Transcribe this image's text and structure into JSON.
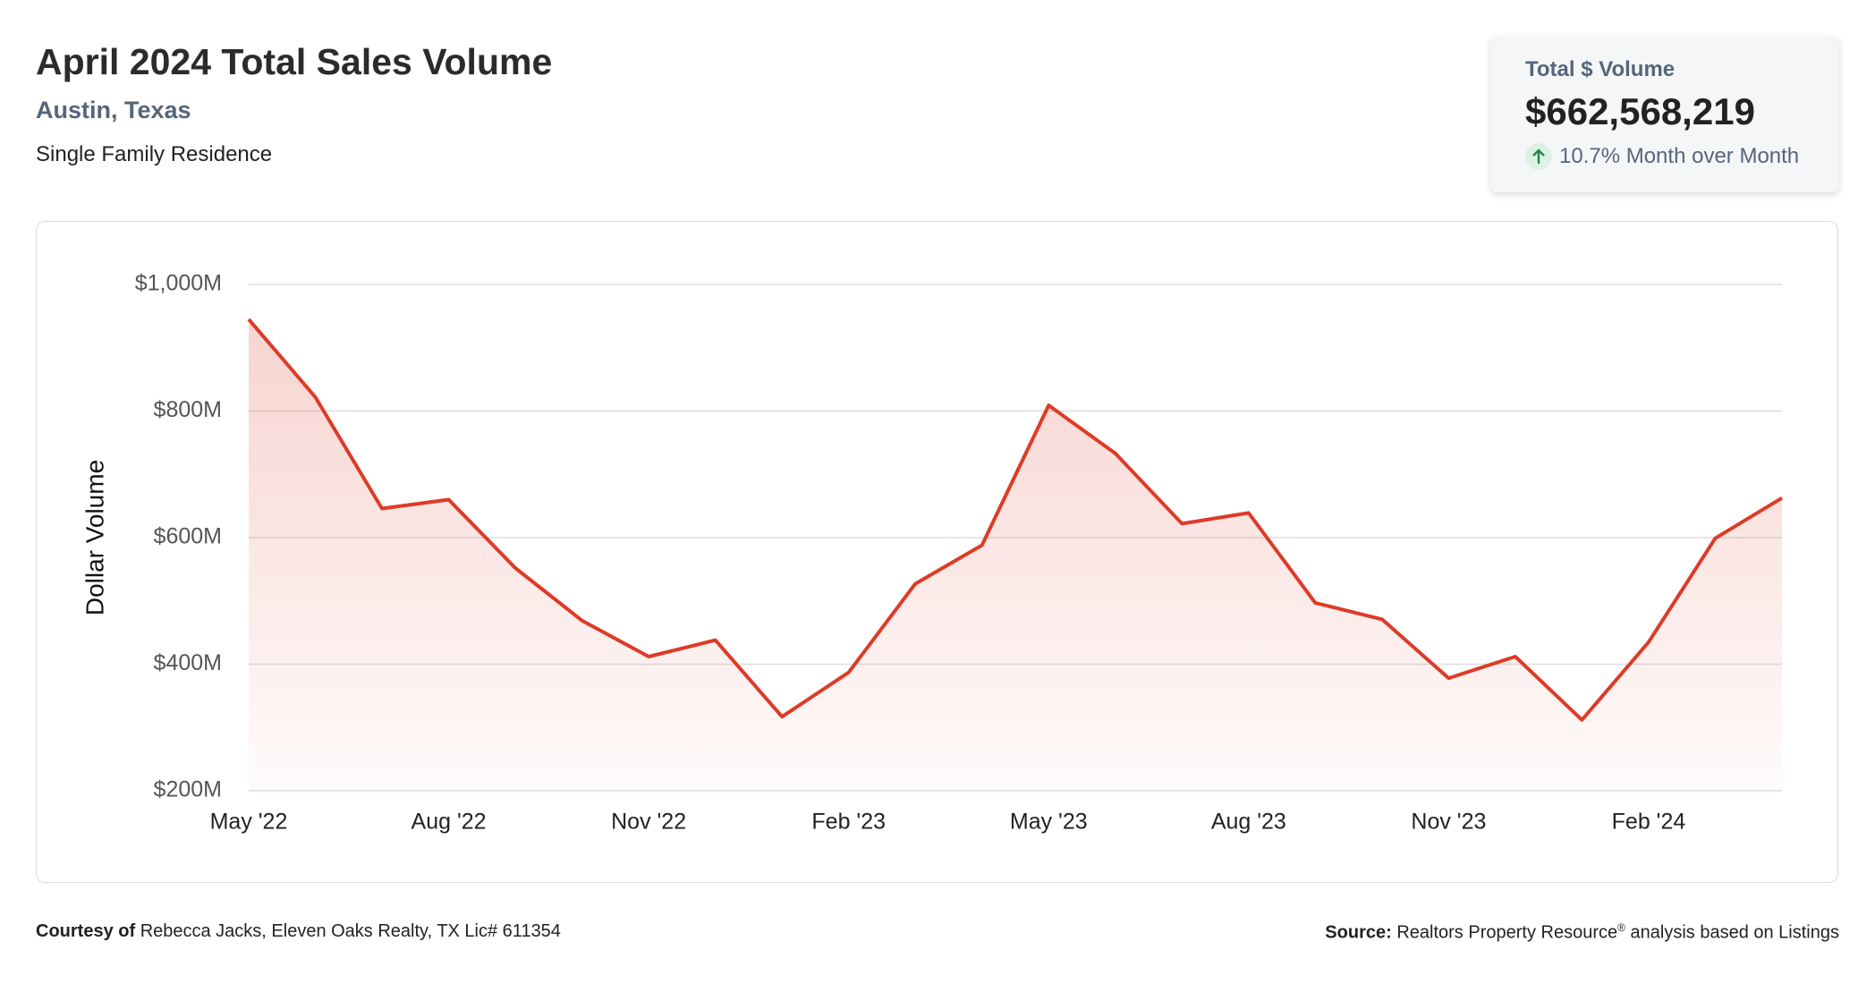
{
  "header": {
    "title": "April 2024 Total Sales Volume",
    "subtitle": "Austin, Texas",
    "segment": "Single Family Residence"
  },
  "kpi": {
    "label": "Total $ Volume",
    "value": "$662,568,219",
    "change": "10.7% Month over Month"
  },
  "chart_data": {
    "type": "line",
    "y_label": "Dollar Volume",
    "categories": [
      "May '22",
      null,
      null,
      "Aug '22",
      null,
      null,
      "Nov '22",
      null,
      null,
      "Feb '23",
      null,
      null,
      "May '23",
      null,
      null,
      "Aug '23",
      null,
      null,
      "Nov '23",
      null,
      null,
      "Feb '24",
      null,
      null
    ],
    "series": [
      {
        "name": "Total Sales Volume",
        "color": "#dd3b27",
        "values": [
          945,
          822,
          646,
          660,
          552,
          469,
          412,
          438,
          317,
          387,
          527,
          588,
          809,
          733,
          622,
          639,
          497,
          471,
          378,
          412,
          312,
          435,
          599,
          662.568219
        ]
      }
    ],
    "ylim": [
      200,
      1000
    ],
    "yticks": [
      {
        "value": 200,
        "label": "$200M"
      },
      {
        "value": 400,
        "label": "$400M"
      },
      {
        "value": 600,
        "label": "$600M"
      },
      {
        "value": 800,
        "label": "$800M"
      },
      {
        "value": 1000,
        "label": "$1,000M"
      }
    ],
    "grid": true
  },
  "footer": {
    "courtesy_label": "Courtesy of",
    "courtesy": "Rebecca Jacks, Eleven Oaks Realty, TX Lic# 611354",
    "source_label": "Source:",
    "source": "Realtors Property Resource",
    "source_mark": "®",
    "source_rest": " analysis based on Listings"
  }
}
